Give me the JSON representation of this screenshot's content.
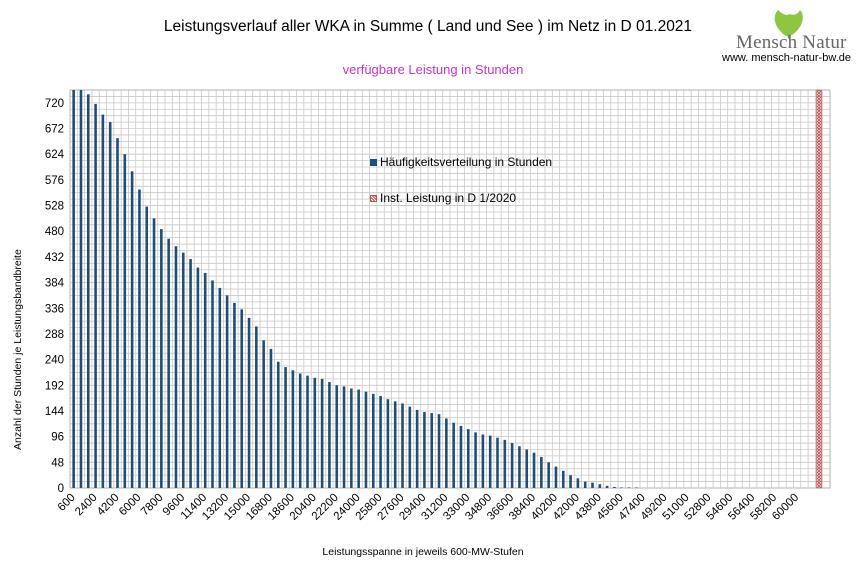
{
  "header": {
    "title": "Leistungsverlauf aller WKA in Summe ( Land und See ) im Netz in D 01.2021",
    "subtitle": "verfügbare Leistung in Stunden",
    "logo_text": "Mensch Natur",
    "logo_url": "www. mensch-natur-bw.de"
  },
  "chart_data": {
    "type": "bar",
    "xlabel": "Leistungsspanne in jeweils 600-MW-Stufen",
    "ylabel": "Anzahl der Stunden je Leistungsbandbreite",
    "ylim": [
      0,
      744
    ],
    "yticks": [
      0,
      48,
      96,
      144,
      192,
      240,
      288,
      336,
      384,
      432,
      480,
      528,
      576,
      624,
      672,
      720
    ],
    "x_tick_labels": [
      "600",
      "2400",
      "4200",
      "6000",
      "7800",
      "9600",
      "11400",
      "13200",
      "15000",
      "16800",
      "18600",
      "20400",
      "22200",
      "24000",
      "25800",
      "27600",
      "29400",
      "31200",
      "33000",
      "34800",
      "36600",
      "38400",
      "40200",
      "42000",
      "43800",
      "45600",
      "47400",
      "49200",
      "51000",
      "52800",
      "54600",
      "56400",
      "58200",
      "60000"
    ],
    "grid": true,
    "legend_placement": "center",
    "series": [
      {
        "name": "Häufigkeitsverteilung in Stunden",
        "color": "#1f4e79",
        "x_start": 600,
        "x_step": 600,
        "values": [
          744,
          744,
          736,
          718,
          698,
          684,
          654,
          624,
          592,
          558,
          526,
          504,
          484,
          466,
          452,
          440,
          428,
          412,
          402,
          388,
          374,
          360,
          346,
          334,
          318,
          302,
          276,
          260,
          236,
          226,
          220,
          214,
          210,
          206,
          204,
          198,
          192,
          190,
          186,
          184,
          180,
          176,
          172,
          166,
          162,
          158,
          152,
          146,
          142,
          140,
          138,
          130,
          122,
          116,
          110,
          104,
          100,
          98,
          94,
          90,
          84,
          78,
          72,
          66,
          58,
          48,
          40,
          32,
          24,
          18,
          12,
          10,
          7,
          4,
          2,
          1,
          1,
          1,
          0,
          0,
          0,
          0,
          0,
          0,
          0,
          0,
          0,
          0,
          0,
          0,
          0,
          0,
          0,
          0,
          0,
          0,
          0,
          0,
          0,
          0
        ]
      },
      {
        "name": "Inst. Leistung in D 1/2020",
        "color": "#c0504d",
        "x": 61800,
        "value": 744
      }
    ]
  }
}
